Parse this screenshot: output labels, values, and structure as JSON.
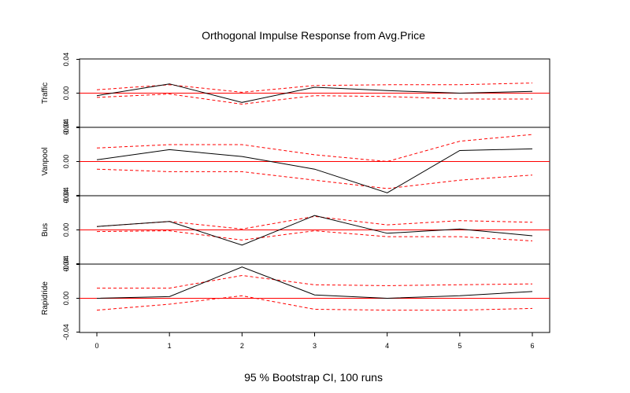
{
  "chart_data": {
    "type": "line",
    "title": "Orthogonal Impulse Response from Avg.Price",
    "subtitle": "95 % Bootstrap CI,  100 runs",
    "x": [
      0,
      1,
      2,
      3,
      4,
      5,
      6
    ],
    "x_tick_labels": [
      "0",
      "1",
      "2",
      "3",
      "4",
      "5",
      "6"
    ],
    "ylim": [
      -0.04,
      0.04
    ],
    "y_tick_labels": [
      "-0.04",
      "0.00",
      "0.04"
    ],
    "zero_line_color": "#ff0000",
    "response_color": "#000000",
    "ci_color": "#ff0000",
    "panels": [
      {
        "ylabel": "Traffic",
        "response": [
          -0.003,
          0.011,
          -0.011,
          0.007,
          0.003,
          0.0,
          0.002
        ],
        "upper": [
          0.004,
          0.01,
          0.001,
          0.009,
          0.01,
          0.01,
          0.012
        ],
        "lower": [
          -0.005,
          -0.001,
          -0.013,
          -0.003,
          -0.004,
          -0.007,
          -0.007
        ]
      },
      {
        "ylabel": "Vanpool",
        "response": [
          0.002,
          0.014,
          0.006,
          -0.009,
          -0.037,
          0.013,
          0.015
        ],
        "upper": [
          0.016,
          0.02,
          0.02,
          0.008,
          0.0,
          0.024,
          0.032
        ],
        "lower": [
          -0.009,
          -0.012,
          -0.012,
          -0.022,
          -0.032,
          -0.022,
          -0.016
        ]
      },
      {
        "ylabel": "Bus",
        "response": [
          0.004,
          0.01,
          -0.018,
          0.017,
          -0.004,
          0.001,
          -0.007
        ],
        "upper": [
          0.004,
          0.01,
          0.001,
          0.016,
          0.006,
          0.011,
          0.009
        ],
        "lower": [
          -0.002,
          -0.001,
          -0.012,
          -0.001,
          -0.008,
          -0.008,
          -0.013
        ]
      },
      {
        "ylabel": "Rapidride",
        "response": [
          0.0,
          0.002,
          0.037,
          0.004,
          0.0,
          0.003,
          0.008
        ],
        "upper": [
          0.012,
          0.012,
          0.027,
          0.016,
          0.015,
          0.016,
          0.017
        ],
        "lower": [
          -0.014,
          -0.007,
          0.003,
          -0.013,
          -0.014,
          -0.014,
          -0.012
        ]
      }
    ]
  }
}
